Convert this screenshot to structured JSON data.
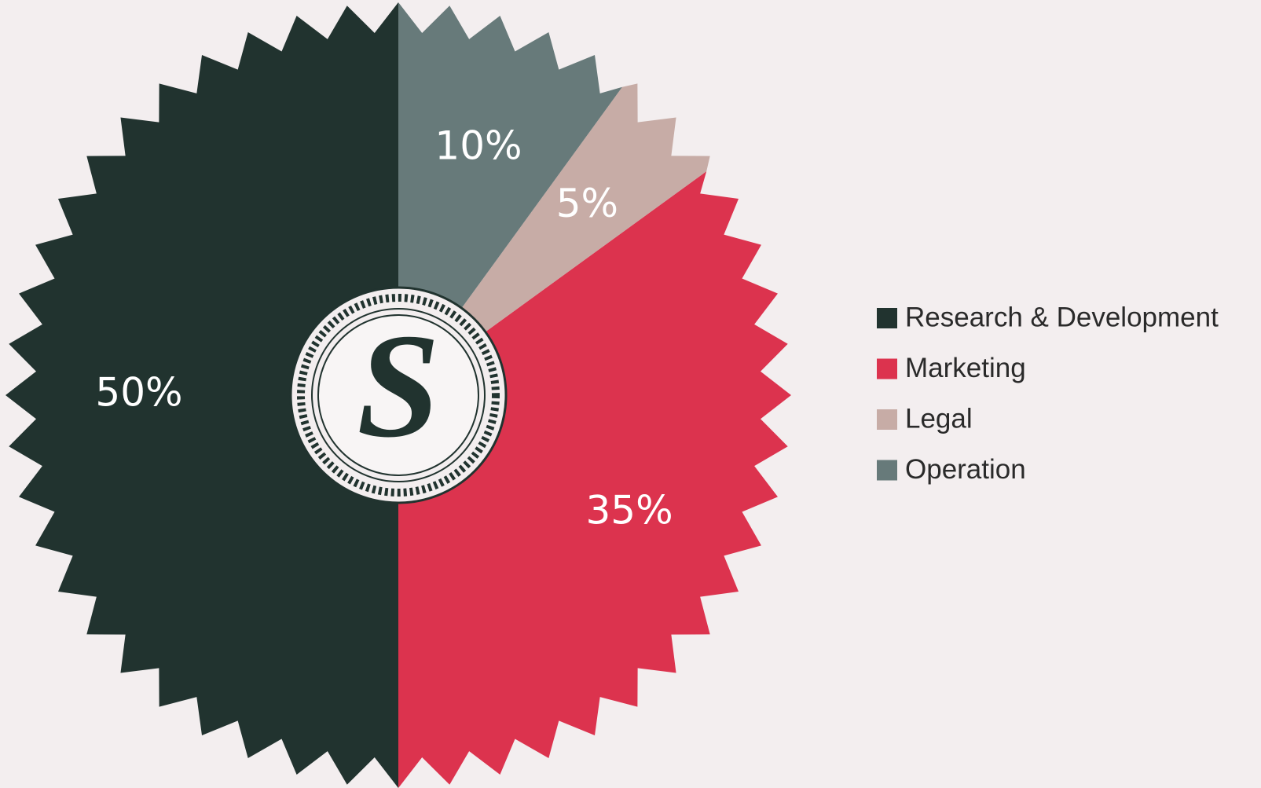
{
  "chart_data": {
    "type": "pie",
    "categories": [
      "Research & Development",
      "Marketing",
      "Legal",
      "Operation"
    ],
    "values": [
      50,
      35,
      5,
      10
    ],
    "value_labels": [
      "50%",
      "35%",
      "5%",
      "10%"
    ],
    "colors": [
      "#21332f",
      "#dc334e",
      "#c7aca6",
      "#677a7a"
    ],
    "badge_text": "S",
    "legend": "right"
  }
}
